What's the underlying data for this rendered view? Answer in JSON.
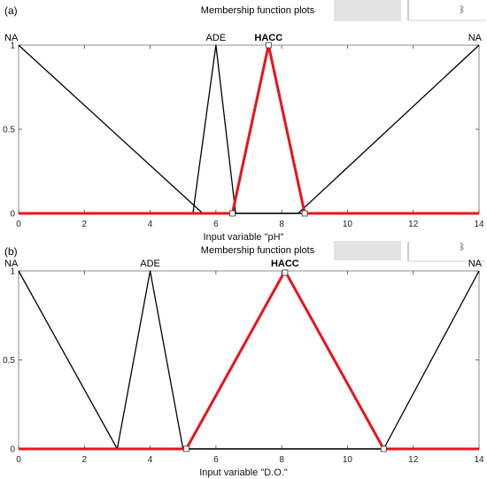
{
  "panels": [
    {
      "label": "(a)",
      "title": "Membership function plots",
      "corner_mark": "ᛒ"
    },
    {
      "label": "(b)",
      "title": "Membership function plots",
      "corner_mark": "ᛒ"
    }
  ],
  "colors": {
    "black_series": "#000000",
    "highlight_series": "#e8141b",
    "header_button": "#e3e3e3"
  },
  "chart_data": [
    {
      "type": "line",
      "title": "Membership function plots",
      "xlabel": "Input variable \"pH\"",
      "ylabel": "",
      "xlim": [
        0,
        14
      ],
      "ylim": [
        0,
        1
      ],
      "xticks": [
        "0",
        "2",
        "4",
        "6",
        "8",
        "10",
        "12",
        "14"
      ],
      "yticks": [
        "0",
        "0.5",
        "1"
      ],
      "grid": false,
      "series": [
        {
          "name": "NA",
          "color": "#000000",
          "highlighted": false,
          "label_x": 0.0,
          "x": [
            0,
            5.6,
            14
          ],
          "y": [
            1,
            0,
            0
          ],
          "x2": [
            0,
            8.5,
            14
          ],
          "y2": [
            0,
            0,
            1
          ]
        },
        {
          "name": "ADE",
          "color": "#000000",
          "highlighted": false,
          "label_x": 6.0,
          "x": [
            0,
            5.3,
            6.0,
            6.6,
            14
          ],
          "y": [
            0,
            0,
            1,
            0,
            0
          ]
        },
        {
          "name": "HACC",
          "color": "#e8141b",
          "highlighted": true,
          "label_x": 7.6,
          "x": [
            0,
            6.5,
            7.6,
            8.7,
            14
          ],
          "y": [
            0,
            0,
            1,
            0,
            0
          ],
          "markers_x": [
            6.5,
            7.6,
            8.7
          ],
          "markers_y": [
            0,
            1,
            0
          ]
        }
      ]
    },
    {
      "type": "line",
      "title": "Membership function plots",
      "xlabel": "Input variable \"D.O.\"",
      "ylabel": "",
      "xlim": [
        0,
        14
      ],
      "ylim": [
        0,
        1
      ],
      "xticks": [
        "0",
        "2",
        "4",
        "6",
        "8",
        "10",
        "12",
        "14"
      ],
      "yticks": [
        "0",
        "0.5",
        "1"
      ],
      "grid": false,
      "series": [
        {
          "name": "NA",
          "color": "#000000",
          "highlighted": false,
          "label_x": 0.0,
          "x": [
            0,
            3.0,
            14
          ],
          "y": [
            1,
            0,
            0
          ],
          "x2": [
            0,
            11.1,
            14
          ],
          "y2": [
            0,
            0,
            1
          ]
        },
        {
          "name": "ADE",
          "color": "#000000",
          "highlighted": false,
          "label_x": 4.0,
          "x": [
            0,
            3.0,
            4.0,
            5.0,
            14
          ],
          "y": [
            0,
            0,
            1,
            0,
            0
          ]
        },
        {
          "name": "HACC",
          "color": "#e8141b",
          "highlighted": true,
          "label_x": 8.1,
          "x": [
            0,
            5.1,
            8.1,
            11.1,
            14
          ],
          "y": [
            0,
            0,
            1,
            0,
            0
          ],
          "markers_x": [
            5.1,
            8.1,
            11.1
          ],
          "markers_y": [
            0,
            0.99,
            0
          ]
        }
      ]
    }
  ]
}
